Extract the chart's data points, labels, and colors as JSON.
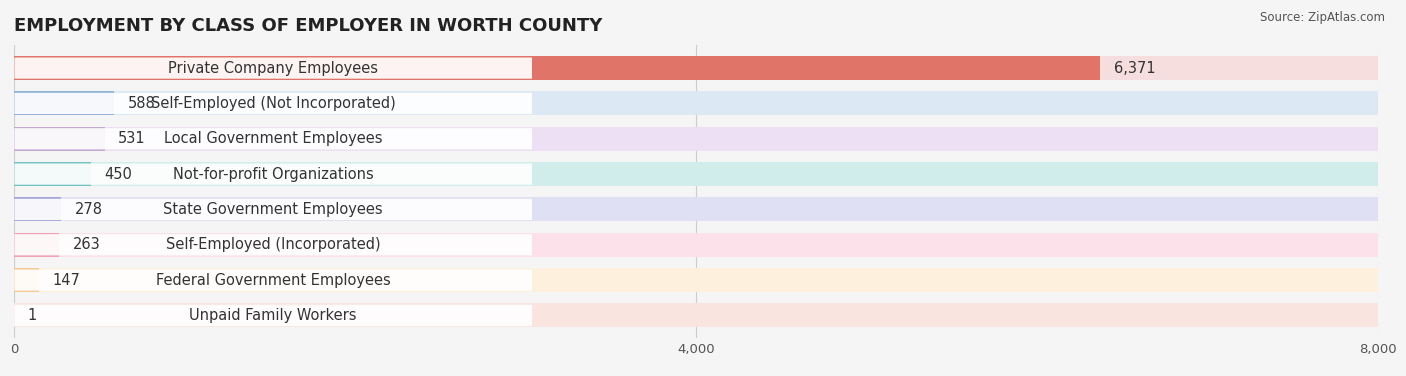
{
  "title": "EMPLOYMENT BY CLASS OF EMPLOYER IN WORTH COUNTY",
  "source": "Source: ZipAtlas.com",
  "categories": [
    "Private Company Employees",
    "Self-Employed (Not Incorporated)",
    "Local Government Employees",
    "Not-for-profit Organizations",
    "State Government Employees",
    "Self-Employed (Incorporated)",
    "Federal Government Employees",
    "Unpaid Family Workers"
  ],
  "values": [
    6371,
    588,
    531,
    450,
    278,
    263,
    147,
    1
  ],
  "bar_colors": [
    "#E07468",
    "#92B4D4",
    "#C4A8D0",
    "#72C4C0",
    "#A8A8D8",
    "#F4A0B4",
    "#F4C890",
    "#F0A898"
  ],
  "bar_bg_colors": [
    "#F5DEDD",
    "#DCE8F4",
    "#EDE0F4",
    "#D0ECEB",
    "#DFE0F4",
    "#FCE0EA",
    "#FDF0DC",
    "#FAE4E0"
  ],
  "xlim": [
    0,
    8000
  ],
  "xticks": [
    0,
    4000,
    8000
  ],
  "xtick_labels": [
    "0",
    "4,000",
    "8,000"
  ],
  "background_color": "#f5f5f5",
  "bar_background": "#ffffff",
  "title_fontsize": 13,
  "label_fontsize": 10.5,
  "value_fontsize": 10.5
}
